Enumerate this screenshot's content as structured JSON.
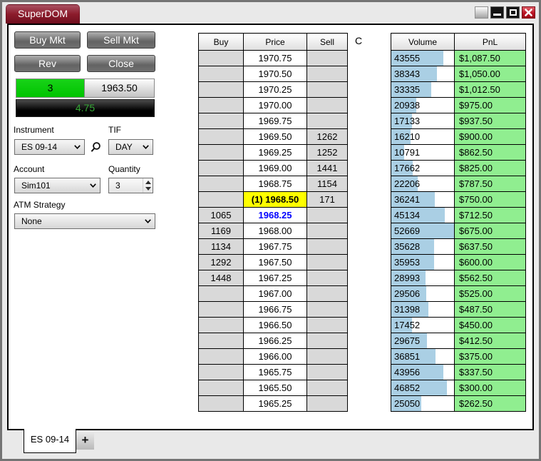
{
  "window": {
    "title": "SuperDOM"
  },
  "order_panel": {
    "buy_mkt_label": "Buy Mkt",
    "sell_mkt_label": "Sell Mkt",
    "rev_label": "Rev",
    "close_label": "Close",
    "position": {
      "quantity": "3",
      "entry_price": "1963.50",
      "pnl": "4.75"
    },
    "instrument": {
      "label": "Instrument",
      "value": "ES 09-14"
    },
    "tif": {
      "label": "TIF",
      "value": "DAY"
    },
    "account": {
      "label": "Account",
      "value": "Sim101"
    },
    "quantity": {
      "label": "Quantity",
      "value": "3"
    },
    "atm_strategy": {
      "label": "ATM Strategy",
      "value": "None"
    }
  },
  "ladder": {
    "buy_header": "Buy",
    "price_header": "Price",
    "sell_header": "Sell",
    "center_label": "C",
    "rows": [
      {
        "buy": "",
        "price": "1970.75",
        "sell": ""
      },
      {
        "buy": "",
        "price": "1970.50",
        "sell": ""
      },
      {
        "buy": "",
        "price": "1970.25",
        "sell": ""
      },
      {
        "buy": "",
        "price": "1970.00",
        "sell": ""
      },
      {
        "buy": "",
        "price": "1969.75",
        "sell": ""
      },
      {
        "buy": "",
        "price": "1969.50",
        "sell": "1262"
      },
      {
        "buy": "",
        "price": "1969.25",
        "sell": "1252"
      },
      {
        "buy": "",
        "price": "1969.00",
        "sell": "1441"
      },
      {
        "buy": "",
        "price": "1968.75",
        "sell": "1154"
      },
      {
        "buy": "",
        "price": "(1) 1968.50",
        "sell": "171",
        "highlight": "last-price"
      },
      {
        "buy": "1065",
        "price": "1968.25",
        "sell": "",
        "highlight": "best-bid"
      },
      {
        "buy": "1169",
        "price": "1968.00",
        "sell": ""
      },
      {
        "buy": "1134",
        "price": "1967.75",
        "sell": ""
      },
      {
        "buy": "1292",
        "price": "1967.50",
        "sell": ""
      },
      {
        "buy": "1448",
        "price": "1967.25",
        "sell": ""
      },
      {
        "buy": "",
        "price": "1967.00",
        "sell": ""
      },
      {
        "buy": "",
        "price": "1966.75",
        "sell": ""
      },
      {
        "buy": "",
        "price": "1966.50",
        "sell": ""
      },
      {
        "buy": "",
        "price": "1966.25",
        "sell": ""
      },
      {
        "buy": "",
        "price": "1966.00",
        "sell": ""
      },
      {
        "buy": "",
        "price": "1965.75",
        "sell": ""
      },
      {
        "buy": "",
        "price": "1965.50",
        "sell": ""
      },
      {
        "buy": "",
        "price": "1965.25",
        "sell": ""
      }
    ]
  },
  "volume_panel": {
    "volume_header": "Volume",
    "pnl_header": "PnL",
    "max_volume": 52669,
    "rows": [
      {
        "volume": 43555,
        "pnl": "$1,087.50"
      },
      {
        "volume": 38343,
        "pnl": "$1,050.00"
      },
      {
        "volume": 33335,
        "pnl": "$1,012.50"
      },
      {
        "volume": 20938,
        "pnl": "$975.00"
      },
      {
        "volume": 17133,
        "pnl": "$937.50"
      },
      {
        "volume": 16210,
        "pnl": "$900.00"
      },
      {
        "volume": 10791,
        "pnl": "$862.50"
      },
      {
        "volume": 17662,
        "pnl": "$825.00"
      },
      {
        "volume": 22206,
        "pnl": "$787.50"
      },
      {
        "volume": 36241,
        "pnl": "$750.00"
      },
      {
        "volume": 45134,
        "pnl": "$712.50"
      },
      {
        "volume": 52669,
        "pnl": "$675.00"
      },
      {
        "volume": 35628,
        "pnl": "$637.50"
      },
      {
        "volume": 35953,
        "pnl": "$600.00"
      },
      {
        "volume": 28993,
        "pnl": "$562.50"
      },
      {
        "volume": 29506,
        "pnl": "$525.00"
      },
      {
        "volume": 31398,
        "pnl": "$487.50"
      },
      {
        "volume": 17452,
        "pnl": "$450.00"
      },
      {
        "volume": 29675,
        "pnl": "$412.50"
      },
      {
        "volume": 36851,
        "pnl": "$375.00"
      },
      {
        "volume": 43956,
        "pnl": "$337.50"
      },
      {
        "volume": 46852,
        "pnl": "$300.00"
      },
      {
        "volume": 25050,
        "pnl": "$262.50"
      }
    ]
  },
  "tab_bar": {
    "active_tab": "ES 09-14",
    "add_tab": "+"
  },
  "colors": {
    "title_tab": "#8c1c2c",
    "last_price_highlight": "#ffff00",
    "best_bid_text": "#0000ff",
    "volume_bar": "#aacfe4",
    "pnl_positive_bg": "#90ee90",
    "position_qty_bg": "#00c400",
    "position_pnl_text": "#35a835"
  }
}
